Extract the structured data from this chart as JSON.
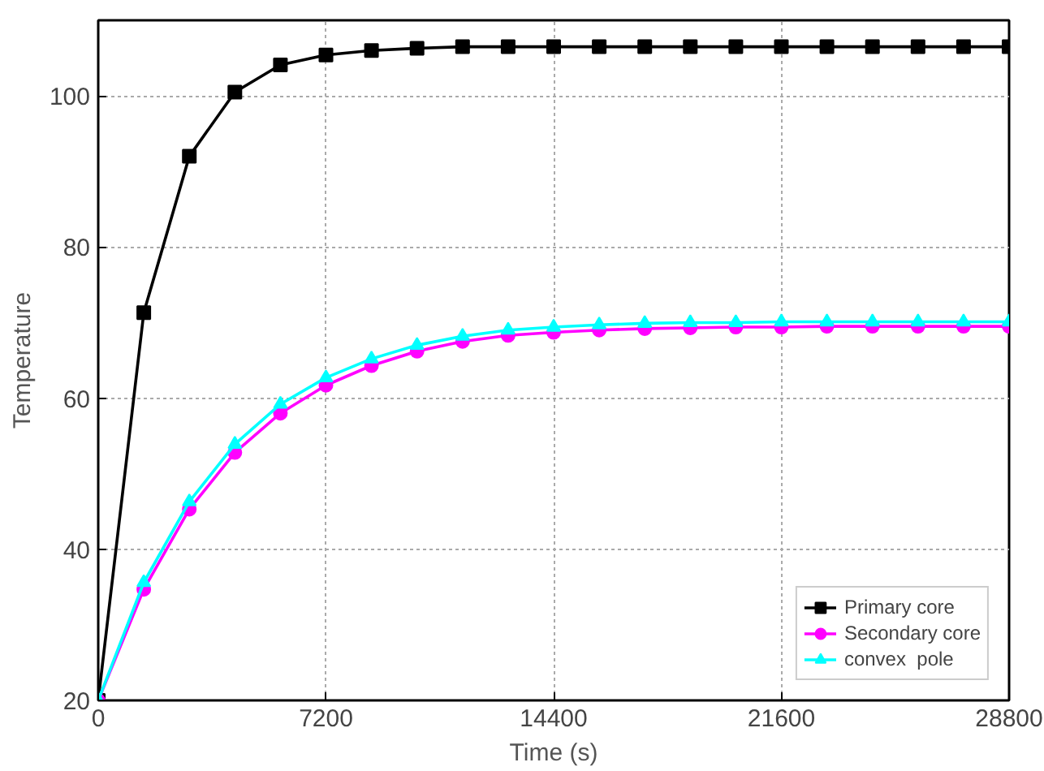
{
  "chart_data": {
    "type": "line",
    "xlabel": "Time (s)",
    "ylabel": "Temperature",
    "x": [
      0,
      1440,
      2880,
      4320,
      5760,
      7200,
      8640,
      10080,
      11520,
      12960,
      14400,
      15840,
      17280,
      18720,
      20160,
      21600,
      23040,
      24480,
      25920,
      27360,
      28800
    ],
    "series": [
      {
        "name": "Primary core",
        "color": "#000000",
        "marker": "square",
        "values": [
          20,
          71.3,
          92.0,
          100.5,
          104.1,
          105.4,
          106.0,
          106.3,
          106.5,
          106.5,
          106.5,
          106.5,
          106.5,
          106.5,
          106.5,
          106.5,
          106.5,
          106.5,
          106.5,
          106.5,
          106.5
        ]
      },
      {
        "name": "Secondary core",
        "color": "#ff00ff",
        "marker": "circle",
        "values": [
          20,
          34.7,
          45.3,
          52.8,
          58.0,
          61.7,
          64.3,
          66.2,
          67.5,
          68.3,
          68.7,
          69.0,
          69.2,
          69.3,
          69.4,
          69.4,
          69.5,
          69.5,
          69.5,
          69.5,
          69.5
        ]
      },
      {
        "name": "convex  pole",
        "color": "#00ffff",
        "marker": "triangle",
        "values": [
          20,
          35.6,
          46.3,
          53.9,
          59.2,
          62.7,
          65.2,
          67.0,
          68.2,
          69.0,
          69.4,
          69.7,
          69.9,
          70.0,
          70.0,
          70.1,
          70.1,
          70.1,
          70.1,
          70.1,
          70.1
        ]
      }
    ],
    "xlim": [
      0,
      28800
    ],
    "ylim": [
      20,
      110
    ],
    "xticks": [
      0,
      7200,
      14400,
      21600,
      28800
    ],
    "yticks": [
      20,
      40,
      60,
      80,
      100
    ],
    "grid": true,
    "legend": "bottom right",
    "line_style": "solid"
  }
}
